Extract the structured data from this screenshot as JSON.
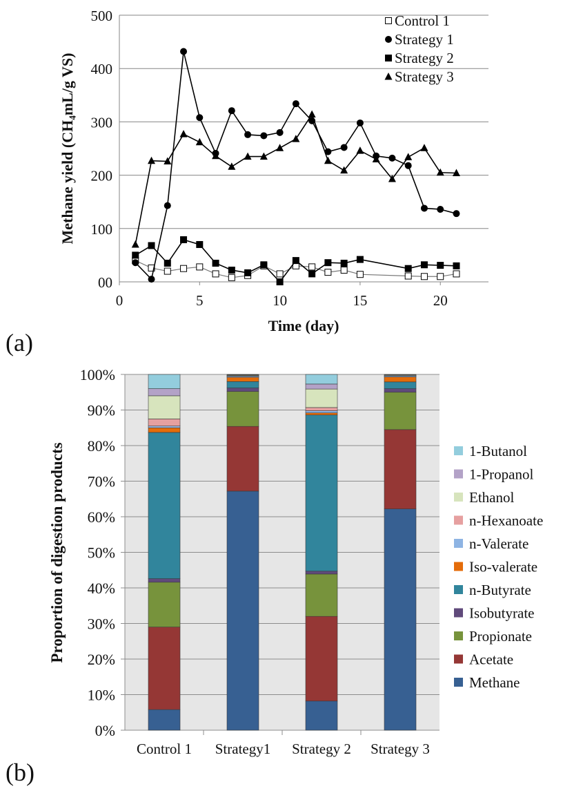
{
  "chart_data": [
    {
      "panel_label": "(a)",
      "type": "line",
      "title": "",
      "xlabel": "Time (day)",
      "ylabel": "Methane yield (CH₄mL/g VS)",
      "xlim": [
        0,
        23
      ],
      "ylim": [
        0,
        500
      ],
      "x_ticks": [
        0,
        5,
        10,
        15,
        20
      ],
      "y_ticks": [
        0,
        100,
        200,
        300,
        400,
        500
      ],
      "y_tick_labels": [
        "00",
        "100",
        "200",
        "300",
        "400",
        "500"
      ],
      "grid": "horizontal",
      "legend_position": "top-right",
      "series": [
        {
          "name": "Control 1",
          "marker": "square-open",
          "points": [
            [
              1,
              40
            ],
            [
              2,
              26
            ],
            [
              3,
              20
            ],
            [
              4,
              25
            ],
            [
              5,
              28
            ],
            [
              6,
              15
            ],
            [
              7,
              8
            ],
            [
              8,
              12
            ],
            [
              9,
              30
            ],
            [
              10,
              15
            ],
            [
              11,
              30
            ],
            [
              12,
              28
            ],
            [
              13,
              18
            ],
            [
              14,
              22
            ],
            [
              15,
              14
            ],
            [
              18,
              11
            ],
            [
              19,
              10
            ],
            [
              20,
              10
            ],
            [
              21,
              15
            ]
          ]
        },
        {
          "name": "Strategy 1",
          "marker": "circle",
          "points": [
            [
              1,
              36
            ],
            [
              2,
              5
            ],
            [
              3,
              143
            ],
            [
              4,
              432
            ],
            [
              5,
              308
            ],
            [
              6,
              241
            ],
            [
              7,
              321
            ],
            [
              8,
              276
            ],
            [
              9,
              274
            ],
            [
              10,
              280
            ],
            [
              11,
              334
            ],
            [
              12,
              302
            ],
            [
              13,
              244
            ],
            [
              14,
              252
            ],
            [
              15,
              298
            ],
            [
              16,
              236
            ],
            [
              17,
              232
            ],
            [
              18,
              218
            ],
            [
              19,
              138
            ],
            [
              20,
              136
            ],
            [
              21,
              128
            ]
          ]
        },
        {
          "name": "Strategy 2",
          "marker": "square",
          "points": [
            [
              1,
              50
            ],
            [
              2,
              68
            ],
            [
              3,
              35
            ],
            [
              4,
              79
            ],
            [
              5,
              70
            ],
            [
              6,
              35
            ],
            [
              7,
              22
            ],
            [
              8,
              17
            ],
            [
              9,
              32
            ],
            [
              10,
              0
            ],
            [
              11,
              40
            ],
            [
              12,
              15
            ],
            [
              13,
              36
            ],
            [
              14,
              35
            ],
            [
              15,
              42
            ],
            [
              18,
              25
            ],
            [
              19,
              32
            ],
            [
              20,
              31
            ],
            [
              21,
              30
            ]
          ]
        },
        {
          "name": "Strategy 3",
          "marker": "triangle",
          "points": [
            [
              1,
              70
            ],
            [
              2,
              227
            ],
            [
              3,
              226
            ],
            [
              4,
              277
            ],
            [
              5,
              262
            ],
            [
              6,
              236
            ],
            [
              7,
              216
            ],
            [
              8,
              235
            ],
            [
              9,
              235
            ],
            [
              10,
              251
            ],
            [
              11,
              268
            ],
            [
              12,
              314
            ],
            [
              13,
              227
            ],
            [
              14,
              209
            ],
            [
              15,
              246
            ],
            [
              16,
              230
            ],
            [
              17,
              193
            ],
            [
              18,
              234
            ],
            [
              19,
              251
            ],
            [
              20,
              205
            ],
            [
              21,
              204
            ]
          ]
        }
      ]
    },
    {
      "panel_label": "(b)",
      "type": "bar",
      "stacked": true,
      "title": "",
      "xlabel": "",
      "ylabel": "Proportion of digestion products",
      "ylim": [
        0,
        100
      ],
      "y_ticks": [
        0,
        10,
        20,
        30,
        40,
        50,
        60,
        70,
        80,
        90,
        100
      ],
      "y_tick_labels": [
        "0%",
        "10%",
        "20%",
        "30%",
        "40%",
        "50%",
        "60%",
        "70%",
        "80%",
        "90%",
        "100%"
      ],
      "grid": "horizontal",
      "legend_position": "right",
      "categories": [
        "Control 1",
        "Strategy1",
        "Strategy 2",
        "Strategy 3"
      ],
      "series": [
        {
          "name": "Methane",
          "color": "#376092",
          "values": [
            5.8,
            67.2,
            8.2,
            62.2
          ]
        },
        {
          "name": "Acetate",
          "color": "#953735",
          "values": [
            23.2,
            18.2,
            23.8,
            22.3
          ]
        },
        {
          "name": "Propionate",
          "color": "#77933c",
          "values": [
            12.6,
            9.8,
            11.9,
            10.5
          ]
        },
        {
          "name": "Isobutyrate",
          "color": "#604a7b",
          "values": [
            1.0,
            1.0,
            0.8,
            1.0
          ]
        },
        {
          "name": "n-Butyrate",
          "color": "#31859c",
          "values": [
            41.1,
            1.8,
            43.9,
            1.9
          ]
        },
        {
          "name": "Iso-valerate",
          "color": "#e46c0a",
          "values": [
            1.3,
            1.2,
            0.6,
            1.4
          ]
        },
        {
          "name": "n-Valerate",
          "color": "#8eb4e3",
          "values": [
            0.5,
            0.3,
            0.6,
            0.3
          ]
        },
        {
          "name": "n-Hexanoate",
          "color": "#e6a0a0",
          "values": [
            2.0,
            0.1,
            0.9,
            0.1
          ]
        },
        {
          "name": "Ethanol",
          "color": "#d7e4bd",
          "values": [
            6.5,
            0.2,
            5.2,
            0.2
          ]
        },
        {
          "name": "1-Propanol",
          "color": "#b3a2c7",
          "values": [
            2.0,
            0.1,
            1.4,
            0.1
          ]
        },
        {
          "name": "1-Butanol",
          "color": "#93cddd",
          "values": [
            4.0,
            0.1,
            2.7,
            0.0
          ]
        }
      ]
    }
  ]
}
